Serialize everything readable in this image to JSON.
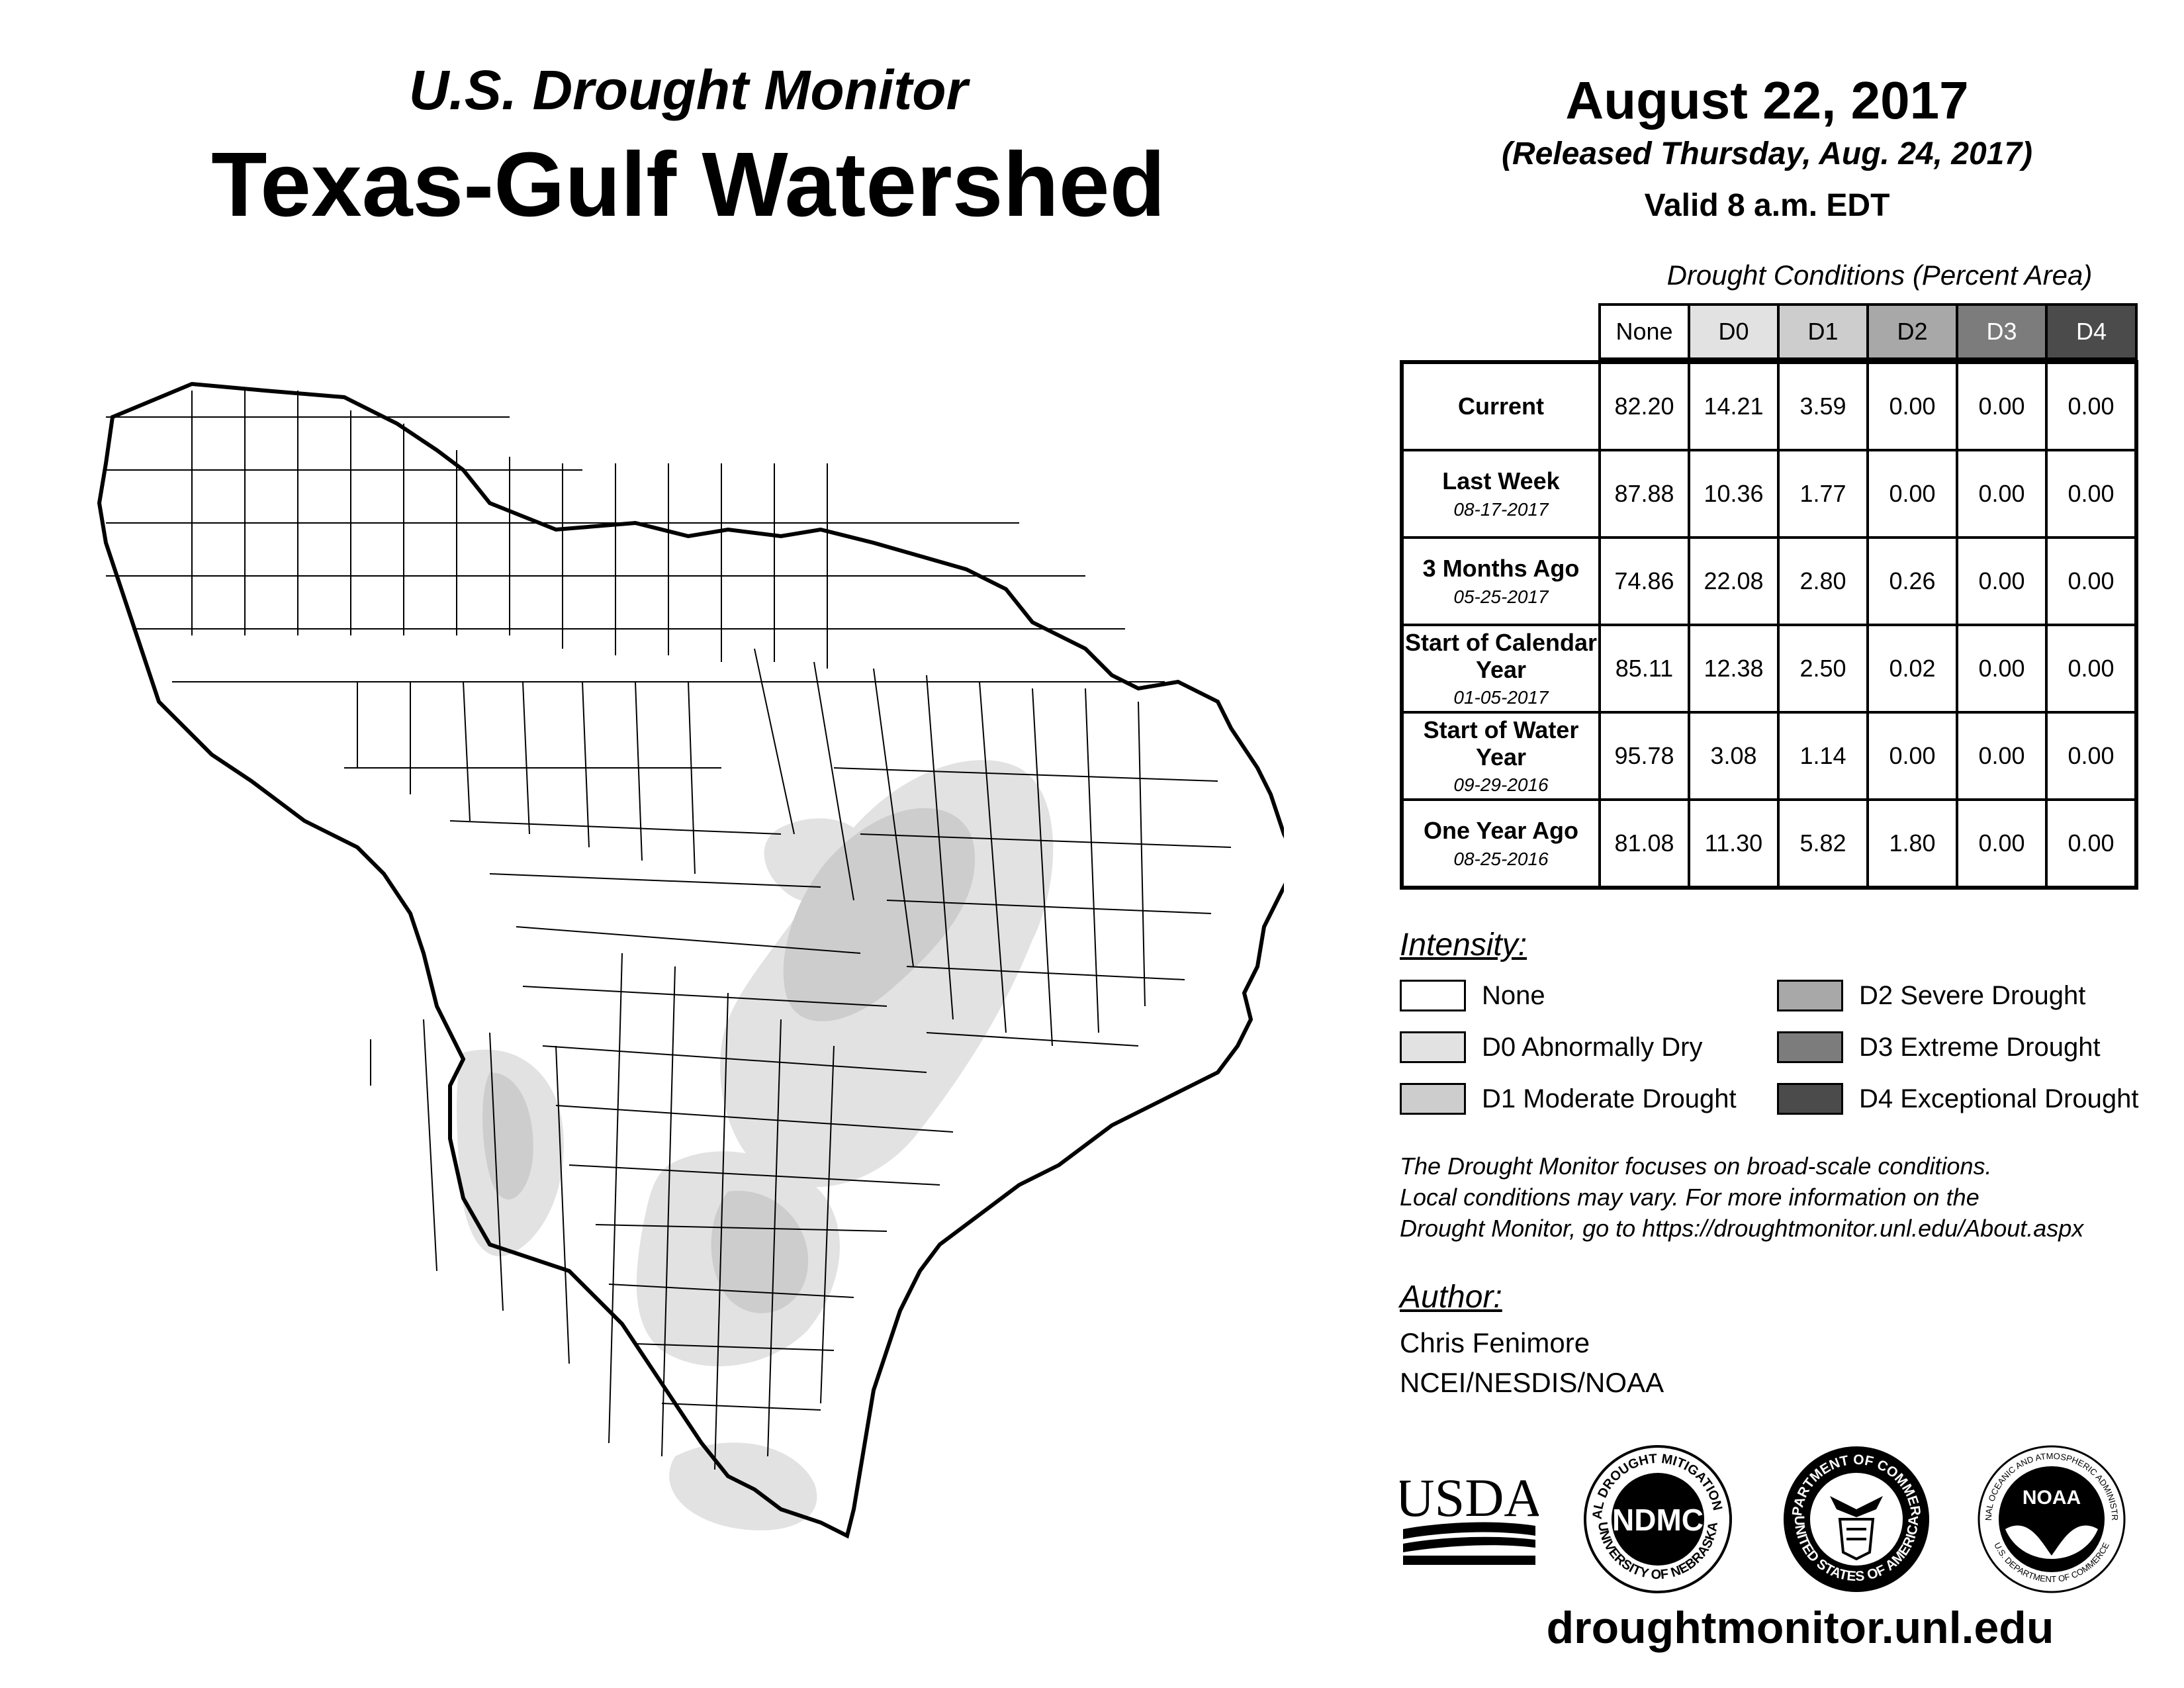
{
  "header": {
    "subtitle": "U.S. Drought Monitor",
    "title": "Texas-Gulf Watershed",
    "date": "August 22, 2017",
    "released": "(Released Thursday, Aug. 24, 2017)",
    "valid": "Valid 8 a.m. EDT"
  },
  "table": {
    "caption": "Drought Conditions (Percent Area)",
    "columns": [
      "None",
      "D0",
      "D1",
      "D2",
      "D3",
      "D4"
    ],
    "rows": [
      {
        "label": "Current",
        "date": "",
        "values": [
          "82.20",
          "14.21",
          "3.59",
          "0.00",
          "0.00",
          "0.00"
        ]
      },
      {
        "label": "Last Week",
        "date": "08-17-2017",
        "values": [
          "87.88",
          "10.36",
          "1.77",
          "0.00",
          "0.00",
          "0.00"
        ]
      },
      {
        "label": "3 Months Ago",
        "date": "05-25-2017",
        "values": [
          "74.86",
          "22.08",
          "2.80",
          "0.26",
          "0.00",
          "0.00"
        ]
      },
      {
        "label": "Start of Calendar Year",
        "date": "01-05-2017",
        "values": [
          "85.11",
          "12.38",
          "2.50",
          "0.02",
          "0.00",
          "0.00"
        ]
      },
      {
        "label": "Start of Water Year",
        "date": "09-29-2016",
        "values": [
          "95.78",
          "3.08",
          "1.14",
          "0.00",
          "0.00",
          "0.00"
        ]
      },
      {
        "label": "One Year Ago",
        "date": "08-25-2016",
        "values": [
          "81.08",
          "11.30",
          "5.82",
          "1.80",
          "0.00",
          "0.00"
        ]
      }
    ]
  },
  "intensity": {
    "heading": "Intensity:",
    "items": [
      {
        "label": "None",
        "color": "#ffffff"
      },
      {
        "label": "D0 Abnormally Dry",
        "color": "#e2e2e2"
      },
      {
        "label": "D1 Moderate Drought",
        "color": "#cdcdcd"
      },
      {
        "label": "D2 Severe Drought",
        "color": "#a8a8a8"
      },
      {
        "label": "D3 Extreme Drought",
        "color": "#7c7c7c"
      },
      {
        "label": "D4 Exceptional Drought",
        "color": "#4b4b4b"
      }
    ]
  },
  "disclaimer": {
    "line1": "The Drought Monitor focuses on broad-scale conditions.",
    "line2": "Local conditions may vary. For more information on the",
    "line3": "Drought Monitor, go to https://droughtmonitor.unl.edu/About.aspx"
  },
  "author": {
    "heading": "Author:",
    "name": "Chris Fenimore",
    "org": "NCEI/NESDIS/NOAA"
  },
  "logos": {
    "usda": "USDA",
    "ndmc": "NDMC",
    "ndmc_top": "NATIONAL DROUGHT MITIGATION CENTER",
    "ndmc_bottom": "UNIVERSITY OF NEBRASKA",
    "doc_top": "DEPARTMENT OF COMMERCE",
    "doc_bottom": "UNITED STATES OF AMERICA",
    "noaa": "NOAA",
    "noaa_top": "NATIONAL OCEANIC AND ATMOSPHERIC ADMINISTRATION",
    "noaa_bottom": "U.S. DEPARTMENT OF COMMERCE"
  },
  "website": "droughtmonitor.unl.edu"
}
